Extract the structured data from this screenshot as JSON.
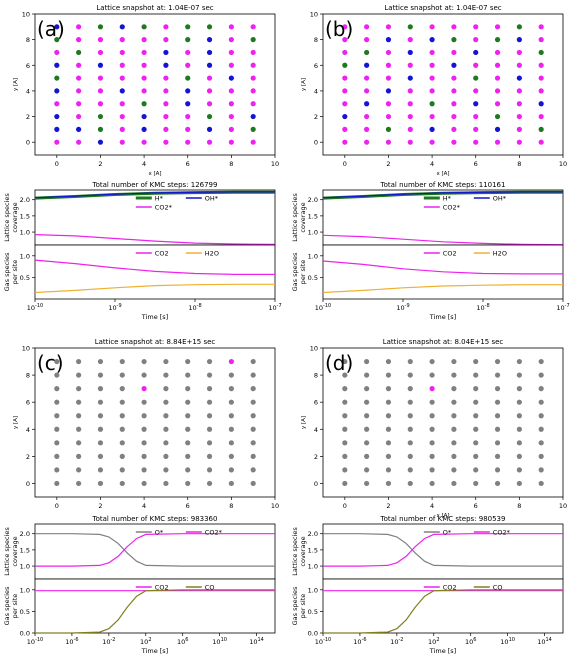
{
  "colors": {
    "H*": "#1f7a1f",
    "OH*": "#1414d2",
    "CO2*": "#ee22ee",
    "O*": "#808080",
    "CO2": "#ee22ee",
    "H2O": "#f0b030",
    "CO": "#808020",
    "empty": "#ee22ee"
  },
  "chart_data": [
    {
      "panel_label": "(a)",
      "type": "scatter",
      "title": "Lattice snapshot at: 1.04E-07 sec",
      "xlabel": "x [A]",
      "ylabel": "y [A]",
      "xlim": [
        -1,
        10
      ],
      "ylim": [
        -1,
        10
      ],
      "xticks": [
        "0",
        "2",
        "4",
        "6",
        "8",
        "10"
      ],
      "yticks": [
        "0",
        "2",
        "4",
        "6",
        "8",
        "10"
      ],
      "grid_x": [
        0,
        1,
        2,
        3,
        4,
        5,
        6,
        7,
        8,
        9
      ],
      "grid_y": [
        0,
        1,
        2,
        3,
        4,
        5,
        6,
        7,
        8,
        9
      ],
      "grid": [
        "MMBMMMMMMM",
        "BBGMBMMBMG",
        "BMGMBMMGMB",
        "MMMMGMBMMM",
        "BMMBMMBMMM",
        "GMMMMMGMBM",
        "BMBMMBMBMM",
        "MGMMMBMBMM",
        "GMMMMMGBMG",
        "BMGBGMGGMM"
      ],
      "key": {
        "M": "CO2*",
        "B": "OH*",
        "G": "H*"
      }
    },
    {
      "panel_label": "(b)",
      "type": "scatter",
      "title": "Lattice snapshot at: 1.04E-07 sec",
      "xlabel": "x [A]",
      "ylabel": "y [A]",
      "xlim": [
        -1,
        10
      ],
      "ylim": [
        -1,
        10
      ],
      "xticks": [
        "0",
        "2",
        "4",
        "6",
        "8",
        "10"
      ],
      "yticks": [
        "0",
        "2",
        "4",
        "6",
        "8",
        "10"
      ],
      "grid_x": [
        0,
        1,
        2,
        3,
        4,
        5,
        6,
        7,
        8,
        9
      ],
      "grid_y": [
        0,
        1,
        2,
        3,
        4,
        5,
        6,
        7,
        8,
        9
      ],
      "grid": [
        "MMMMMMMMMM",
        "MMGMBMMBMG",
        "BMMMMMMGMM",
        "MBMMGMBMMB",
        "MMBMMMMMMM",
        "MMMBMMGMBM",
        "GBMMMBMMMM",
        "MGMBMMBMMG",
        "MMBMBGMGBM",
        "MMMGMMMMGM"
      ],
      "key": {
        "M": "CO2*",
        "B": "OH*",
        "G": "H*"
      }
    },
    {
      "panel_label": "",
      "type": "line",
      "title": "Total number of KMC steps: 126799",
      "top": {
        "ylabel": "Lattice species\ncoverage",
        "yticks": [
          "1.0",
          "1.5",
          "2.0"
        ],
        "legend": [
          "H*",
          "OH*",
          "CO2*"
        ],
        "series": [
          {
            "name": "CO2*",
            "x": [
              -10,
              -9.5,
              -9,
              -8.5,
              -8,
              -7.5,
              -7
            ],
            "y": [
              0.92,
              0.88,
              0.8,
              0.72,
              0.66,
              0.63,
              0.62
            ]
          },
          {
            "name": "H*",
            "x": [
              -10,
              -9.5,
              -9,
              -8.5,
              -8,
              -7.5,
              -7
            ],
            "y": [
              2.05,
              2.1,
              2.16,
              2.2,
              2.22,
              2.23,
              2.23
            ]
          },
          {
            "name": "OH*",
            "x": [
              -10,
              -9.5,
              -9,
              -8.5,
              -8,
              -7.5,
              -7
            ],
            "y": [
              2.06,
              2.11,
              2.17,
              2.21,
              2.23,
              2.24,
              2.24
            ]
          }
        ]
      },
      "bottom": {
        "ylabel": "Gas species\nper site",
        "yticks": [
          "0.5",
          "1.0"
        ],
        "legend": [
          "CO2",
          "H2O"
        ],
        "series": [
          {
            "name": "CO2",
            "x": [
              -10,
              -9.5,
              -9,
              -8.5,
              -8,
              -7.5,
              -7
            ],
            "y": [
              0.9,
              0.82,
              0.72,
              0.64,
              0.59,
              0.57,
              0.57
            ]
          },
          {
            "name": "H2O",
            "x": [
              -10,
              -9.5,
              -9,
              -8.5,
              -8,
              -7.5,
              -7
            ],
            "y": [
              0.15,
              0.2,
              0.26,
              0.31,
              0.33,
              0.34,
              0.34
            ]
          }
        ]
      },
      "xlabel": "Time [s]",
      "xscale": "log",
      "xlim": [
        -10,
        -7
      ],
      "xticks": [
        "10^-10",
        "10^-9",
        "10^-8",
        "10^-7"
      ]
    },
    {
      "panel_label": "",
      "type": "line",
      "title": "Total number of KMC steps: 110161",
      "top": {
        "ylabel": "Lattice species\ncoverage",
        "yticks": [
          "1.0",
          "1.5",
          "2.0"
        ],
        "legend": [
          "H*",
          "OH*",
          "CO2*"
        ],
        "series": [
          {
            "name": "CO2*",
            "x": [
              -10,
              -9.5,
              -9,
              -8.5,
              -8,
              -7.5,
              -7
            ],
            "y": [
              0.9,
              0.86,
              0.78,
              0.7,
              0.65,
              0.62,
              0.61
            ]
          },
          {
            "name": "H*",
            "x": [
              -10,
              -9.5,
              -9,
              -8.5,
              -8,
              -7.5,
              -7
            ],
            "y": [
              2.05,
              2.1,
              2.16,
              2.2,
              2.22,
              2.23,
              2.23
            ]
          },
          {
            "name": "OH*",
            "x": [
              -10,
              -9.5,
              -9,
              -8.5,
              -8,
              -7.5,
              -7
            ],
            "y": [
              2.06,
              2.11,
              2.17,
              2.21,
              2.23,
              2.24,
              2.24
            ]
          }
        ]
      },
      "bottom": {
        "ylabel": "Gas species\nper site",
        "yticks": [
          "0.5",
          "1.0"
        ],
        "legend": [
          "CO2",
          "H2O"
        ],
        "series": [
          {
            "name": "CO2",
            "x": [
              -10,
              -9.5,
              -9,
              -8.5,
              -8,
              -7.5,
              -7
            ],
            "y": [
              0.88,
              0.8,
              0.7,
              0.63,
              0.59,
              0.58,
              0.58
            ]
          },
          {
            "name": "H2O",
            "x": [
              -10,
              -9.5,
              -9,
              -8.5,
              -8,
              -7.5,
              -7
            ],
            "y": [
              0.15,
              0.2,
              0.26,
              0.3,
              0.32,
              0.33,
              0.33
            ]
          }
        ]
      },
      "xlabel": "Time [s]",
      "xscale": "log",
      "xlim": [
        -10,
        -7
      ],
      "xticks": [
        "10^-10",
        "10^-9",
        "10^-8",
        "10^-7"
      ]
    },
    {
      "panel_label": "(c)",
      "type": "scatter",
      "title": "Lattice snapshot at: 8.84E+15 sec",
      "xlabel": "",
      "ylabel": "y [A]",
      "xlim": [
        -1,
        10
      ],
      "ylim": [
        -1,
        10
      ],
      "xticks": [
        "0",
        "2",
        "4",
        "6",
        "8",
        "10"
      ],
      "yticks": [
        "0",
        "2",
        "4",
        "6",
        "8",
        "10"
      ],
      "grid_x": [
        0,
        1,
        2,
        3,
        4,
        5,
        6,
        7,
        8,
        9
      ],
      "grid_y": [
        0,
        1,
        2,
        3,
        4,
        5,
        6,
        7,
        8,
        9
      ],
      "grid": [
        "OOOOOOOOOO",
        "OOOOOOOOOO",
        "OOOOOOOOOO",
        "OOOOOOOOOO",
        "OOOOOOOOOO",
        "OOOOOOOOOO",
        "OOOOOOOOOO",
        "OOOOMOOOOO",
        "OOOOOOOOOO",
        "OOOOOOOOMO"
      ],
      "key": {
        "O": "O*",
        "M": "CO2*"
      }
    },
    {
      "panel_label": "(d)",
      "type": "scatter",
      "title": "Lattice snapshot at: 8.04E+15 sec",
      "xlabel": "x [A]",
      "ylabel": "y [A]",
      "xlim": [
        -1,
        10
      ],
      "ylim": [
        -1,
        10
      ],
      "xticks": [
        "0",
        "2",
        "4",
        "6",
        "8",
        "10"
      ],
      "yticks": [
        "0",
        "2",
        "4",
        "6",
        "8",
        "10"
      ],
      "grid_x": [
        0,
        1,
        2,
        3,
        4,
        5,
        6,
        7,
        8,
        9
      ],
      "grid_y": [
        0,
        1,
        2,
        3,
        4,
        5,
        6,
        7,
        8,
        9
      ],
      "grid": [
        "OOOOOOOOOO",
        "OOOOOOOOOO",
        "OOOOOOOOOO",
        "OOOOOOOOOO",
        "OOOOOOOOOO",
        "OOOOOOOOOO",
        "OOOOOOOOOO",
        "OOOOMOOOOO",
        "OOOOOOOOOO",
        "OOOOOOOOOO"
      ],
      "key": {
        "O": "O*",
        "M": "CO2*"
      }
    },
    {
      "panel_label": "",
      "type": "line",
      "title": "Total number of KMC steps: 983360",
      "top": {
        "ylabel": "Lattice species\ncoverage",
        "yticks": [
          "1.0",
          "1.5",
          "2.0"
        ],
        "legend": [
          "O*",
          "CO2*"
        ],
        "series": [
          {
            "name": "O*",
            "x": [
              -10,
              -6,
              -3,
              -2,
              -1,
              0,
              1,
              2,
              6,
              10,
              14,
              16
            ],
            "y": [
              2.0,
              2.0,
              1.98,
              1.9,
              1.7,
              1.4,
              1.15,
              1.02,
              1.0,
              1.0,
              1.0,
              1.0
            ]
          },
          {
            "name": "CO2*",
            "x": [
              -10,
              -6,
              -3,
              -2,
              -1,
              0,
              1,
              2,
              6,
              10,
              14,
              16
            ],
            "y": [
              1.0,
              1.0,
              1.02,
              1.1,
              1.3,
              1.6,
              1.85,
              1.98,
              2.0,
              2.0,
              2.0,
              2.0
            ]
          }
        ]
      },
      "bottom": {
        "ylabel": "Gas species\nper site",
        "yticks": [
          "0.0",
          "0.5",
          "1.0"
        ],
        "legend": [
          "CO2",
          "CO"
        ],
        "series": [
          {
            "name": "CO2",
            "x": [
              -10,
              -6,
              -2,
              2,
              6,
              10,
              14,
              16
            ],
            "y": [
              0.98,
              0.98,
              0.98,
              0.98,
              0.98,
              0.98,
              0.98,
              0.98
            ]
          },
          {
            "name": "CO",
            "x": [
              -10,
              -6,
              -3,
              -2,
              -1,
              0,
              1,
              2,
              6,
              10,
              14,
              16
            ],
            "y": [
              0.0,
              0.0,
              0.02,
              0.1,
              0.3,
              0.6,
              0.85,
              0.98,
              1.0,
              1.0,
              1.0,
              1.0
            ]
          }
        ]
      },
      "xlabel": "Time [s]",
      "xscale": "log",
      "xlim": [
        -10,
        16
      ],
      "xticks": [
        "10^-10",
        "10^-6",
        "10^-2",
        "10^2",
        "10^6",
        "10^10",
        "10^14"
      ]
    },
    {
      "panel_label": "",
      "type": "line",
      "title": "Total number of KMC steps: 980539",
      "top": {
        "ylabel": "Lattice species\ncoverage",
        "yticks": [
          "1.0",
          "1.5",
          "2.0"
        ],
        "legend": [
          "O*",
          "CO2*"
        ],
        "series": [
          {
            "name": "O*",
            "x": [
              -10,
              -6,
              -3,
              -2,
              -1,
              0,
              1,
              2,
              6,
              10,
              14,
              16
            ],
            "y": [
              2.0,
              2.0,
              1.98,
              1.9,
              1.7,
              1.4,
              1.15,
              1.02,
              1.0,
              1.0,
              1.0,
              1.0
            ]
          },
          {
            "name": "CO2*",
            "x": [
              -10,
              -6,
              -3,
              -2,
              -1,
              0,
              1,
              2,
              6,
              10,
              14,
              16
            ],
            "y": [
              1.0,
              1.0,
              1.02,
              1.1,
              1.3,
              1.6,
              1.85,
              1.98,
              2.0,
              2.0,
              2.0,
              2.0
            ]
          }
        ]
      },
      "bottom": {
        "ylabel": "Gas species\nper site",
        "yticks": [
          "0.0",
          "0.5",
          "1.0"
        ],
        "legend": [
          "CO2",
          "CO"
        ],
        "series": [
          {
            "name": "CO2",
            "x": [
              -10,
              -6,
              -2,
              2,
              6,
              10,
              14,
              16
            ],
            "y": [
              0.98,
              0.98,
              0.98,
              0.98,
              0.98,
              0.98,
              0.98,
              0.98
            ]
          },
          {
            "name": "CO",
            "x": [
              -10,
              -6,
              -3,
              -2,
              -1,
              0,
              1,
              2,
              6,
              10,
              14,
              16
            ],
            "y": [
              0.0,
              0.0,
              0.02,
              0.1,
              0.3,
              0.6,
              0.85,
              0.98,
              1.0,
              1.0,
              1.0,
              1.0
            ]
          }
        ]
      },
      "xlabel": "Time [s]",
      "xscale": "log",
      "xlim": [
        -10,
        16
      ],
      "xticks": [
        "10^-10",
        "10^-6",
        "10^-2",
        "10^2",
        "10^6",
        "10^10",
        "10^14"
      ]
    }
  ]
}
